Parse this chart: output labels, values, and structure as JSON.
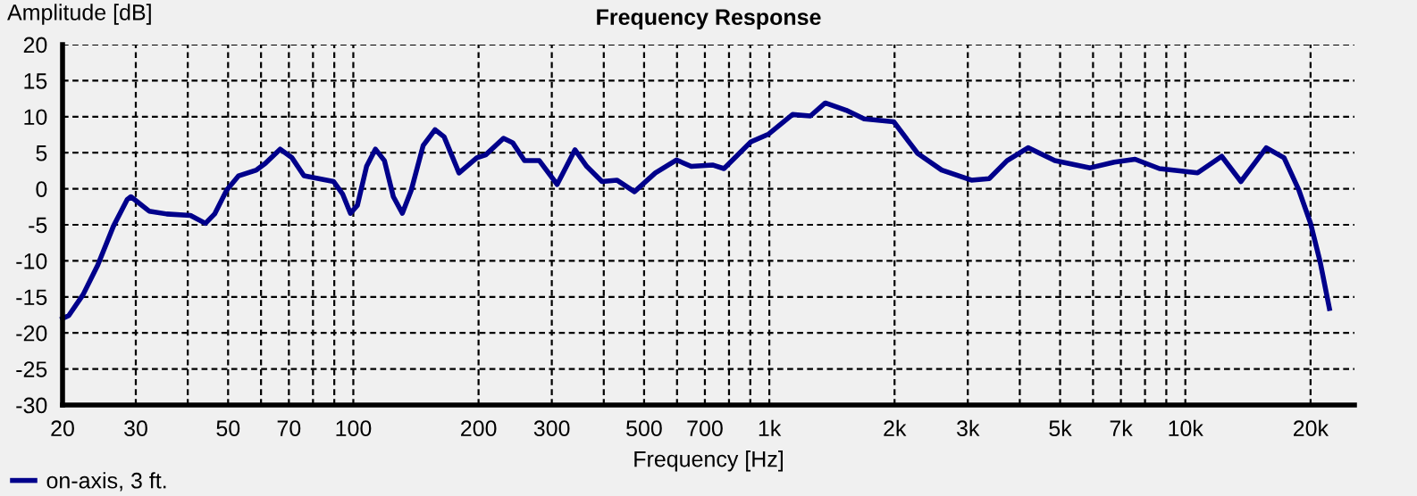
{
  "chart_data": {
    "type": "line",
    "title": "Frequency Response",
    "xlabel": "Frequency [Hz]",
    "ylabel": "Amplitude [dB]",
    "log": "x",
    "grid": true,
    "legend": "bottom left",
    "marker": "none",
    "line_style": "solid",
    "xlim": [
      20,
      25500
    ],
    "ylim": [
      -30,
      20
    ],
    "xticks": [
      20,
      30,
      {
        "value": 40,
        "label": null
      },
      50,
      {
        "value": 60,
        "label": null
      },
      70,
      {
        "value": 80,
        "label": null
      },
      {
        "value": 90,
        "label": null
      },
      100,
      200,
      300,
      {
        "value": 400,
        "label": null
      },
      500,
      {
        "value": 600,
        "label": null
      },
      700,
      {
        "value": 800,
        "label": null
      },
      {
        "value": 900,
        "label": null
      },
      {
        "value": 1000,
        "label": "1k"
      },
      {
        "value": 2000,
        "label": "2k"
      },
      {
        "value": 3000,
        "label": "3k"
      },
      {
        "value": 4000,
        "label": null
      },
      {
        "value": 5000,
        "label": "5k"
      },
      {
        "value": 6000,
        "label": null
      },
      {
        "value": 7000,
        "label": "7k"
      },
      {
        "value": 8000,
        "label": null
      },
      {
        "value": 9000,
        "label": null
      },
      {
        "value": 10000,
        "label": "10k"
      },
      {
        "value": 20000,
        "label": "20k"
      }
    ],
    "yticks": [
      -30,
      -25,
      -20,
      -15,
      -10,
      -5,
      0,
      5,
      10,
      15,
      20
    ],
    "series": [
      {
        "name": "on-axis, 3 ft.",
        "color": "#00008b",
        "x": [
          20,
          20.7,
          22.4,
          24.3,
          26.5,
          28.6,
          29.2,
          32.3,
          35.6,
          40.6,
          44.1,
          46.4,
          49.6,
          53,
          58.5,
          61.4,
          66.7,
          71.2,
          76.1,
          82.6,
          89.7,
          94.2,
          98.4,
          102.3,
          107.6,
          113,
          118.8,
          124.8,
          131.2,
          137.8,
          147.2,
          157.2,
          165.3,
          179.5,
          198.1,
          208,
          229.6,
          241.5,
          257.9,
          280,
          309,
          341,
          364,
          396,
          430,
          474,
          532,
          598,
          649,
          730,
          778,
          903,
          997,
          1137,
          1255,
          1363,
          1530,
          1690,
          1991,
          2273,
          2596,
          3060,
          3377,
          3727,
          4188,
          4857,
          5905,
          6748,
          7572,
          8664,
          10700,
          12230,
          13600,
          15650,
          17270,
          18750,
          20000,
          21100,
          22200
        ],
        "values": [
          -18,
          -17.6,
          -14.7,
          -10.6,
          -5.2,
          -1.5,
          -1.1,
          -3.1,
          -3.5,
          -3.7,
          -4.8,
          -3.5,
          -0.2,
          1.8,
          2.6,
          3.5,
          5.5,
          4.3,
          1.8,
          1.4,
          1.0,
          -0.7,
          -3.4,
          -2.3,
          3.1,
          5.5,
          3.9,
          -1.1,
          -3.4,
          -0.2,
          6.0,
          8.2,
          7.2,
          2.2,
          4.3,
          4.7,
          7.0,
          6.4,
          3.9,
          3.9,
          0.6,
          5.4,
          3.1,
          1.0,
          1.2,
          -0.4,
          2.2,
          4.0,
          3.1,
          3.3,
          2.8,
          6.5,
          7.6,
          10.3,
          10.1,
          11.9,
          10.9,
          9.7,
          9.3,
          4.9,
          2.6,
          1.2,
          1.4,
          3.9,
          5.7,
          3.9,
          2.9,
          3.7,
          4.1,
          2.8,
          2.2,
          4.5,
          1.0,
          5.7,
          4.3,
          -0.2,
          -4.8,
          -10.2,
          -16.6
        ]
      }
    ]
  }
}
